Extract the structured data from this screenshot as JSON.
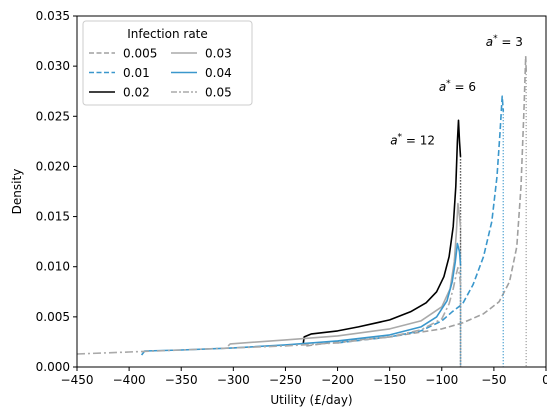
{
  "chart_data": {
    "type": "line",
    "title": "",
    "xlabel": "Utility (£/day)",
    "ylabel": "Density",
    "xlim": [
      -450,
      0
    ],
    "ylim": [
      0,
      0.035
    ],
    "xticks": [
      -450,
      -400,
      -350,
      -300,
      -250,
      -200,
      -150,
      -100,
      -50,
      0
    ],
    "xtick_labels": [
      "−450",
      "−400",
      "−350",
      "−300",
      "−250",
      "−200",
      "−150",
      "−100",
      "−50",
      "0"
    ],
    "yticks": [
      0,
      0.005,
      0.01,
      0.015,
      0.02,
      0.025,
      0.03,
      0.035
    ],
    "ytick_labels": [
      "0.000",
      "0.005",
      "0.010",
      "0.015",
      "0.020",
      "0.025",
      "0.030",
      "0.035"
    ],
    "grid": false,
    "legend": {
      "title": "Infection rate",
      "placement": "top-left",
      "columns": 2
    },
    "series": [
      {
        "name": "0.005",
        "color": "#a0a0a0",
        "dash": "dashed",
        "points": [
          [
            -230,
            0.0021
          ],
          [
            -200,
            0.0025
          ],
          [
            -150,
            0.003
          ],
          [
            -100,
            0.0038
          ],
          [
            -80,
            0.0044
          ],
          [
            -60,
            0.0053
          ],
          [
            -45,
            0.0065
          ],
          [
            -35,
            0.0085
          ],
          [
            -28,
            0.012
          ],
          [
            -24,
            0.018
          ],
          [
            -21,
            0.026
          ],
          [
            -19.5,
            0.031
          ],
          [
            -19,
            0.0295
          ]
        ],
        "cutoff": -19
      },
      {
        "name": "0.01",
        "color": "#3a97cc",
        "dash": "dashed",
        "points": [
          [
            -200,
            0.0024
          ],
          [
            -150,
            0.003
          ],
          [
            -120,
            0.0036
          ],
          [
            -100,
            0.0046
          ],
          [
            -90,
            0.0055
          ],
          [
            -80,
            0.0063
          ],
          [
            -70,
            0.0082
          ],
          [
            -60,
            0.011
          ],
          [
            -52,
            0.0145
          ],
          [
            -47,
            0.019
          ],
          [
            -44,
            0.0235
          ],
          [
            -42,
            0.027
          ],
          [
            -41,
            0.0255
          ]
        ],
        "cutoff": -41
      },
      {
        "name": "0.02",
        "color": "#000000",
        "dash": "solid",
        "points": [
          [
            -233,
            0.0023
          ],
          [
            -232,
            0.003
          ],
          [
            -225,
            0.0033
          ],
          [
            -200,
            0.0036
          ],
          [
            -180,
            0.004
          ],
          [
            -150,
            0.0047
          ],
          [
            -130,
            0.0055
          ],
          [
            -115,
            0.0064
          ],
          [
            -105,
            0.0075
          ],
          [
            -98,
            0.009
          ],
          [
            -93,
            0.011
          ],
          [
            -89,
            0.014
          ],
          [
            -86.5,
            0.018
          ],
          [
            -85,
            0.0225
          ],
          [
            -84,
            0.0246
          ],
          [
            -83,
            0.0225
          ],
          [
            -82,
            0.021
          ]
        ],
        "cutoff": -82
      },
      {
        "name": "0.03",
        "color": "#aaaaaa",
        "dash": "solid",
        "points": [
          [
            -305,
            0.0021
          ],
          [
            -303,
            0.0023
          ],
          [
            -250,
            0.0027
          ],
          [
            -200,
            0.0031
          ],
          [
            -150,
            0.0038
          ],
          [
            -120,
            0.0046
          ],
          [
            -100,
            0.006
          ],
          [
            -92,
            0.0078
          ],
          [
            -88,
            0.0105
          ],
          [
            -86,
            0.0135
          ],
          [
            -84.5,
            0.0163
          ],
          [
            -83,
            0.015
          ],
          [
            -82,
            0.014
          ]
        ],
        "cutoff": -82
      },
      {
        "name": "0.04",
        "color": "#3a97cc",
        "dash": "solid",
        "points": [
          [
            -388,
            0.0012
          ],
          [
            -385,
            0.0016
          ],
          [
            -350,
            0.0017
          ],
          [
            -300,
            0.0019
          ],
          [
            -250,
            0.0022
          ],
          [
            -200,
            0.0026
          ],
          [
            -150,
            0.0032
          ],
          [
            -120,
            0.004
          ],
          [
            -105,
            0.005
          ],
          [
            -95,
            0.0066
          ],
          [
            -90,
            0.0085
          ],
          [
            -87,
            0.0105
          ],
          [
            -85,
            0.0123
          ],
          [
            -83,
            0.0115
          ],
          [
            -82,
            0.0102
          ]
        ],
        "cutoff": -82
      },
      {
        "name": "0.05",
        "color": "#aaaaaa",
        "dash": "dashdot",
        "points": [
          [
            -450,
            0.0013
          ],
          [
            -400,
            0.0015
          ],
          [
            -350,
            0.0017
          ],
          [
            -300,
            0.0019
          ],
          [
            -250,
            0.0021
          ],
          [
            -200,
            0.0024
          ],
          [
            -150,
            0.003
          ],
          [
            -120,
            0.0037
          ],
          [
            -100,
            0.0048
          ],
          [
            -93,
            0.0063
          ],
          [
            -89,
            0.0078
          ],
          [
            -86,
            0.0093
          ],
          [
            -84.5,
            0.0099
          ],
          [
            -83,
            0.0092
          ],
          [
            -82,
            0.0082
          ]
        ],
        "cutoff": -82
      }
    ],
    "annotations": [
      {
        "text": "a* = 3",
        "x": -40,
        "y": 0.032
      },
      {
        "text": "a* = 6",
        "x": -85,
        "y": 0.0275
      },
      {
        "text": "a* = 12",
        "x": -128,
        "y": 0.0222
      }
    ]
  }
}
